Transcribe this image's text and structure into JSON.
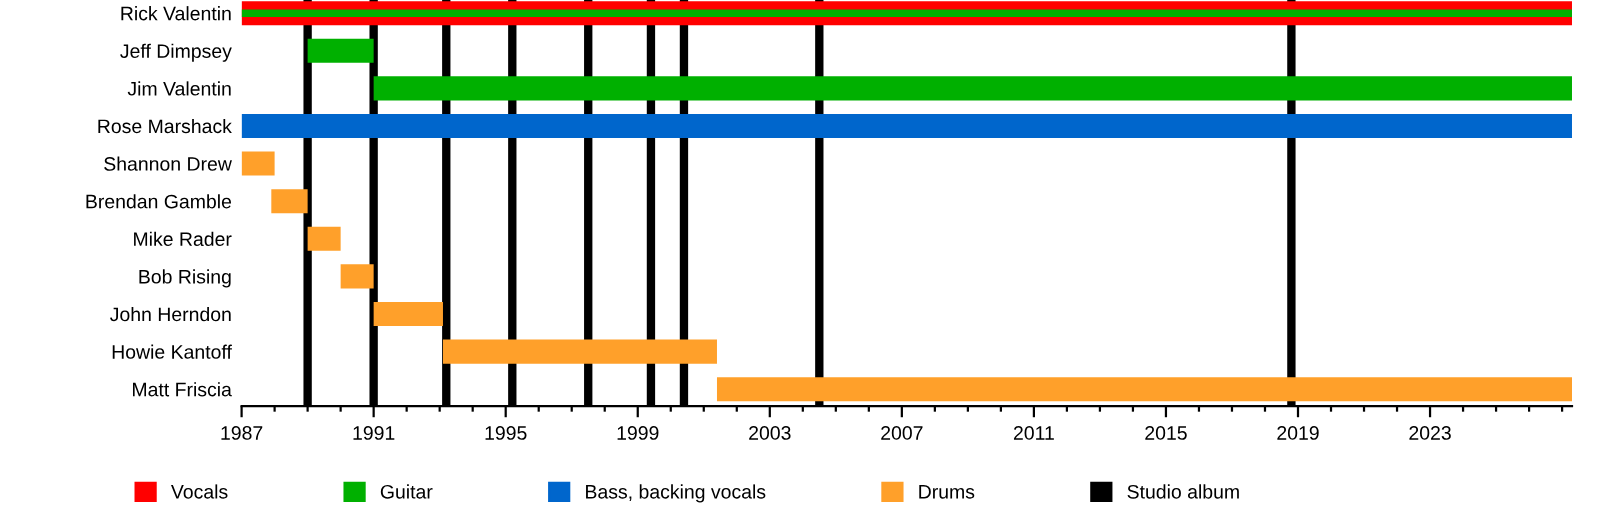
{
  "chart_data": {
    "type": "bar",
    "orientation": "horizontal",
    "categories": [
      "Rick Valentin",
      "Jeff Dimpsey",
      "Jim Valentin",
      "Rose Marshack",
      "Shannon Drew",
      "Brendan Gamble",
      "Mike Rader",
      "Bob Rising",
      "John Herndon",
      "Howie Kantoff",
      "Matt Friscia"
    ],
    "series": [
      {
        "name": "Vocals",
        "color": "#ff0000",
        "base": [
          1987,
          null,
          null,
          null,
          null,
          null,
          null,
          null,
          null,
          null,
          null
        ],
        "values": [
          40.3,
          null,
          null,
          null,
          null,
          null,
          null,
          null,
          null,
          null,
          null
        ]
      },
      {
        "name": "Guitar",
        "color": "#00b000",
        "base": [
          1987,
          1989,
          1991,
          null,
          null,
          null,
          null,
          null,
          null,
          null,
          null
        ],
        "values": [
          40.3,
          2,
          36.3,
          null,
          null,
          null,
          null,
          null,
          null,
          null,
          null
        ]
      },
      {
        "name": "Bass, backing vocals",
        "color": "#0066cc",
        "base": [
          null,
          null,
          null,
          1987,
          null,
          null,
          null,
          null,
          null,
          null,
          null
        ],
        "values": [
          null,
          null,
          null,
          40.3,
          null,
          null,
          null,
          null,
          null,
          null,
          null
        ]
      },
      {
        "name": "Drums",
        "color": "#ffa02a",
        "base": [
          null,
          null,
          null,
          null,
          1987,
          1987.9,
          1989,
          1990,
          1991,
          1993.1,
          2001.4
        ],
        "values": [
          null,
          null,
          null,
          null,
          1,
          1.1,
          1,
          1,
          2.1,
          8.3,
          25.9
        ]
      }
    ],
    "ref_lines": [
      {
        "axis": "x",
        "value": 1989,
        "label": "Studio album",
        "color": "#000000"
      },
      {
        "axis": "x",
        "value": 1991,
        "color": "#000000"
      },
      {
        "axis": "x",
        "value": 1993.2,
        "color": "#000000"
      },
      {
        "axis": "x",
        "value": 1995.2,
        "color": "#000000"
      },
      {
        "axis": "x",
        "value": 1997.5,
        "color": "#000000"
      },
      {
        "axis": "x",
        "value": 1999.4,
        "color": "#000000"
      },
      {
        "axis": "x",
        "value": 2000.4,
        "color": "#000000"
      },
      {
        "axis": "x",
        "value": 2004.5,
        "color": "#000000"
      },
      {
        "axis": "x",
        "value": 2018.8,
        "color": "#000000"
      }
    ],
    "xlim": [
      1987,
      2027.3
    ],
    "xticks": [
      1987,
      {
        "value": 1988,
        "label": null
      },
      {
        "value": 1989,
        "label": null
      },
      {
        "value": 1990,
        "label": null
      },
      1991,
      {
        "value": 1992,
        "label": null
      },
      {
        "value": 1993,
        "label": null
      },
      {
        "value": 1994,
        "label": null
      },
      1995,
      {
        "value": 1996,
        "label": null
      },
      {
        "value": 1997,
        "label": null
      },
      {
        "value": 1998,
        "label": null
      },
      1999,
      {
        "value": 2000,
        "label": null
      },
      {
        "value": 2001,
        "label": null
      },
      {
        "value": 2002,
        "label": null
      },
      2003,
      {
        "value": 2004,
        "label": null
      },
      {
        "value": 2005,
        "label": null
      },
      {
        "value": 2006,
        "label": null
      },
      2007,
      {
        "value": 2008,
        "label": null
      },
      {
        "value": 2009,
        "label": null
      },
      {
        "value": 2010,
        "label": null
      },
      2011,
      {
        "value": 2012,
        "label": null
      },
      {
        "value": 2013,
        "label": null
      },
      {
        "value": 2014,
        "label": null
      },
      2015,
      {
        "value": 2016,
        "label": null
      },
      {
        "value": 2017,
        "label": null
      },
      {
        "value": 2018,
        "label": null
      },
      2019,
      {
        "value": 2020,
        "label": null
      },
      {
        "value": 2021,
        "label": null
      },
      {
        "value": 2022,
        "label": null
      },
      2023,
      {
        "value": 2024,
        "label": null
      },
      {
        "value": 2025,
        "label": null
      },
      {
        "value": 2026,
        "label": null
      },
      {
        "value": 2027,
        "label": null
      }
    ],
    "grid": false,
    "legend": "bottom"
  }
}
